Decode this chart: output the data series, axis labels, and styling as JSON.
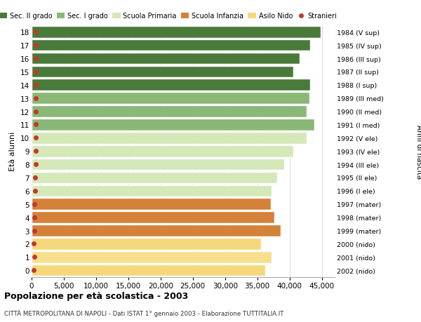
{
  "ages": [
    0,
    1,
    2,
    3,
    4,
    5,
    6,
    7,
    8,
    9,
    10,
    11,
    12,
    13,
    14,
    15,
    16,
    17,
    18
  ],
  "years": [
    "2002 (nido)",
    "2001 (nido)",
    "2000 (nido)",
    "1999 (mater)",
    "1998 (mater)",
    "1997 (mater)",
    "1996 (I ele)",
    "1995 (II ele)",
    "1994 (III ele)",
    "1993 (IV ele)",
    "1992 (V ele)",
    "1991 (I med)",
    "1990 (II med)",
    "1989 (III med)",
    "1988 (I sup)",
    "1987 (II sup)",
    "1986 (III sup)",
    "1985 (IV sup)",
    "1984 (V sup)"
  ],
  "values": [
    36200,
    37200,
    35600,
    38600,
    37600,
    37100,
    37200,
    38100,
    39200,
    40600,
    42600,
    43800,
    42700,
    43100,
    43200,
    40600,
    41600,
    43200,
    44800
  ],
  "stranieri": [
    300,
    400,
    300,
    400,
    400,
    400,
    500,
    550,
    600,
    600,
    650,
    700,
    700,
    700,
    700,
    600,
    600,
    650,
    700
  ],
  "bar_colors": [
    "#f5d87a",
    "#f8df8c",
    "#f5d87a",
    "#d4813a",
    "#d4813a",
    "#d4813a",
    "#d4e8b8",
    "#d4e8b8",
    "#d4e8b8",
    "#d4e8b8",
    "#d4e8b8",
    "#8ab876",
    "#8ab876",
    "#8ab876",
    "#4a7a3a",
    "#4a7a3a",
    "#4a7a3a",
    "#4a7a3a",
    "#4a7a3a"
  ],
  "legend_labels": [
    "Sec. II grado",
    "Sec. I grado",
    "Scuola Primaria",
    "Scuola Infanzia",
    "Asilo Nido",
    "Stranieri"
  ],
  "legend_colors": [
    "#4a7a3a",
    "#8ab876",
    "#d4e8b8",
    "#d4813a",
    "#f5d87a",
    "#c0392b"
  ],
  "stranieri_color": "#c0392b",
  "ylabel": "Età alunni",
  "right_label": "Anni di nascita",
  "title": "Popolazione per età scolastica - 2003",
  "subtitle": "CITTÀ METROPOLITANA DI NAPOLI - Dati ISTAT 1° gennaio 2003 - Elaborazione TUTTITALIA.IT",
  "xlim": [
    0,
    47000
  ],
  "xticks": [
    0,
    5000,
    10000,
    15000,
    20000,
    25000,
    30000,
    35000,
    40000,
    45000
  ],
  "xtick_labels": [
    "0",
    "5,000",
    "10,000",
    "15,000",
    "20,000",
    "25,000",
    "30,000",
    "35,000",
    "40,000",
    "45,000"
  ],
  "background_color": "#ffffff",
  "grid_color": "#cccccc",
  "bar_height": 0.88
}
